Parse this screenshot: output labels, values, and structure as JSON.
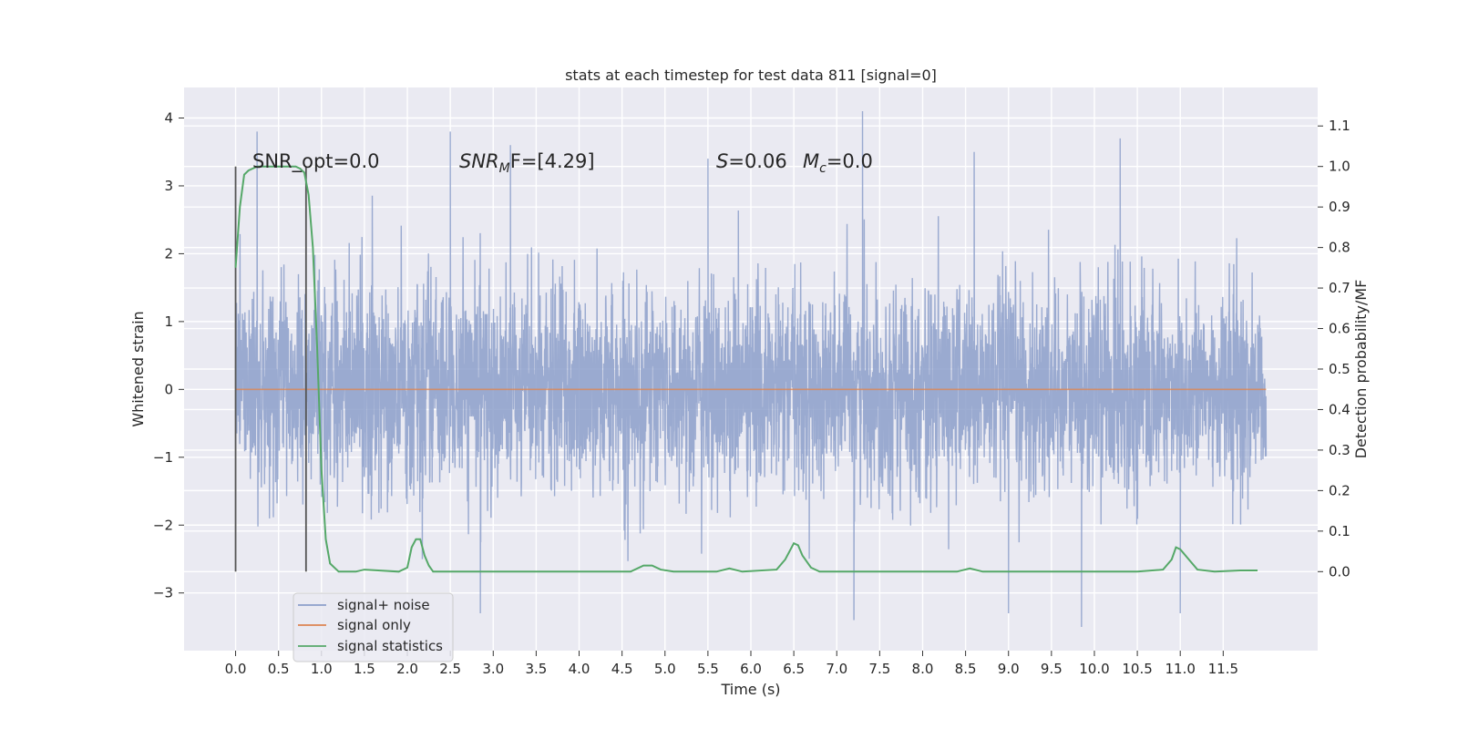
{
  "chart_data": {
    "type": "line",
    "title": "stats at each timestep for test data 811 [signal=0]",
    "xlabel": "Time (s)",
    "ylabel": "Whitened strain",
    "ylabel_right": "Detection probability/MF",
    "xlim": [
      -0.6,
      12.6
    ],
    "ylim": [
      -3.85,
      4.45
    ],
    "ylim_right": [
      -0.195,
      1.195
    ],
    "xticks": [
      0.0,
      0.5,
      1.0,
      1.5,
      2.0,
      2.5,
      3.0,
      3.5,
      4.0,
      4.5,
      5.0,
      5.5,
      6.0,
      6.5,
      7.0,
      7.5,
      8.0,
      8.5,
      9.0,
      9.5,
      10.0,
      10.5,
      11.0,
      11.5
    ],
    "xtick_labels": [
      "0.0",
      "0.5",
      "1.0",
      "1.5",
      "2.0",
      "2.5",
      "3.0",
      "3.5",
      "4.0",
      "4.5",
      "5.0",
      "5.5",
      "6.0",
      "6.5",
      "7.0",
      "7.5",
      "8.0",
      "8.5",
      "9.0",
      "9.5",
      "10.0",
      "10.5",
      "11.0",
      "11.5"
    ],
    "yticks": [
      -3,
      -2,
      -1,
      0,
      1,
      2,
      3,
      4
    ],
    "ytick_labels": [
      "−3",
      "−2",
      "−1",
      "0",
      "1",
      "2",
      "3",
      "4"
    ],
    "yticks_right": [
      0.0,
      0.1,
      0.2,
      0.3,
      0.4,
      0.5,
      0.6,
      0.7,
      0.8,
      0.9,
      1.0,
      1.1
    ],
    "ytick_labels_right": [
      "0.0",
      "0.1",
      "0.2",
      "0.3",
      "0.4",
      "0.5",
      "0.6",
      "0.7",
      "0.8",
      "0.9",
      "1.0",
      "1.1"
    ],
    "grid": true,
    "legend_position": "lower-left",
    "annotations": {
      "snr_opt": "SNR_opt=0.0",
      "snr_mf_main": "SNR",
      "snr_mf_sub": "M",
      "snr_mf_tail": "F=[4.29]",
      "s_main": "S",
      "s_tail": "=0.06",
      "mc_main": "M",
      "mc_sub": "c",
      "mc_tail": "=0.0"
    },
    "markers": [
      {
        "x": 0.0,
        "y_range": [
          -0.0,
          1.0
        ],
        "axis": "right"
      },
      {
        "x": 0.82,
        "y_range": [
          0.0,
          1.0
        ],
        "axis": "right"
      }
    ],
    "series": [
      {
        "name": "signal+ noise",
        "color": "#8c9fca",
        "axis": "left",
        "sample_rate_hz": 2048,
        "x_range": [
          0.0,
          12.0
        ],
        "noise_envelope": {
          "typical_max": 2.1,
          "typical_min": -2.2,
          "peak_max": 4.1,
          "peak_min": -3.4
        },
        "notable_peaks": [
          {
            "x": 0.25,
            "y": 3.8
          },
          {
            "x": 2.5,
            "y": 3.8
          },
          {
            "x": 3.2,
            "y": 3.6
          },
          {
            "x": 5.5,
            "y": 3.4
          },
          {
            "x": 7.3,
            "y": 4.1
          },
          {
            "x": 8.6,
            "y": 3.5
          },
          {
            "x": 10.3,
            "y": 3.7
          },
          {
            "x": 9.0,
            "y": -3.3
          },
          {
            "x": 7.2,
            "y": -3.4
          },
          {
            "x": 11.0,
            "y": -3.3
          },
          {
            "x": 2.85,
            "y": -3.3
          },
          {
            "x": 9.85,
            "y": -3.5
          }
        ]
      },
      {
        "name": "signal only",
        "color": "#dd8452",
        "axis": "left",
        "x": [
          0.0,
          12.0
        ],
        "y": [
          0.0,
          0.0
        ]
      },
      {
        "name": "signal statistics",
        "color": "#55a868",
        "axis": "right",
        "x": [
          0.0,
          0.05,
          0.1,
          0.15,
          0.25,
          0.5,
          0.7,
          0.75,
          0.8,
          0.85,
          0.9,
          0.95,
          1.0,
          1.05,
          1.1,
          1.2,
          1.4,
          1.5,
          1.9,
          2.0,
          2.05,
          2.1,
          2.15,
          2.2,
          2.25,
          2.3,
          2.4,
          2.6,
          3.5,
          4.0,
          4.6,
          4.75,
          4.85,
          4.95,
          5.1,
          5.6,
          5.75,
          5.9,
          6.3,
          6.4,
          6.5,
          6.55,
          6.6,
          6.7,
          6.8,
          7.0,
          7.5,
          8.0,
          8.4,
          8.55,
          8.7,
          9.0,
          10.0,
          10.5,
          10.8,
          10.9,
          10.95,
          11.0,
          11.1,
          11.2,
          11.4,
          11.7,
          11.9
        ],
        "y": [
          0.75,
          0.9,
          0.98,
          0.99,
          1.0,
          1.0,
          1.0,
          0.995,
          0.985,
          0.93,
          0.8,
          0.55,
          0.25,
          0.08,
          0.02,
          0.0,
          0.0,
          0.005,
          0.0,
          0.01,
          0.06,
          0.08,
          0.08,
          0.04,
          0.015,
          0.0,
          0.0,
          0.0,
          0.0,
          0.0,
          0.0,
          0.015,
          0.015,
          0.005,
          0.0,
          0.0,
          0.008,
          0.0,
          0.005,
          0.03,
          0.07,
          0.065,
          0.04,
          0.01,
          0.0,
          0.0,
          0.0,
          0.0,
          0.0,
          0.008,
          0.0,
          0.0,
          0.0,
          0.0,
          0.005,
          0.03,
          0.06,
          0.055,
          0.03,
          0.005,
          0.0,
          0.003,
          0.003
        ]
      }
    ]
  }
}
